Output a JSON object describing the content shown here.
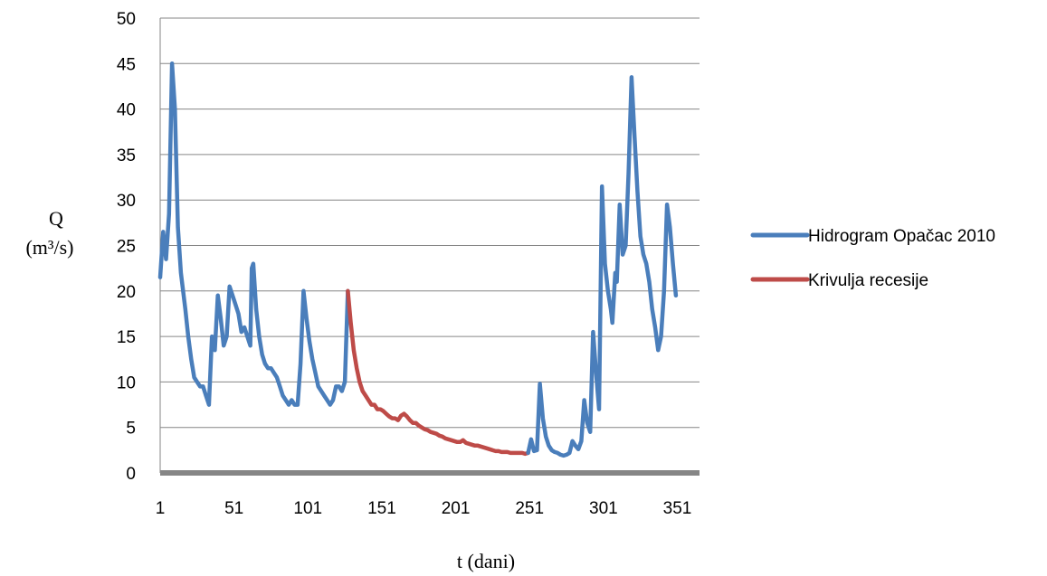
{
  "chart_data": {
    "type": "line",
    "title": "",
    "xlabel": "t (dani)",
    "ylabel": "Q",
    "ylabel_unit": "(m³/s)",
    "xlim": [
      1,
      366
    ],
    "ylim": [
      0,
      50
    ],
    "yticks": [
      0,
      5,
      10,
      15,
      20,
      25,
      30,
      35,
      40,
      45,
      50
    ],
    "xticks": [
      1,
      51,
      101,
      151,
      201,
      251,
      301,
      351
    ],
    "grid": "horizontal",
    "legend_position": "right",
    "series": [
      {
        "name": "Hidrogram Opačac 2010",
        "color": "#4a7ebb",
        "points": [
          [
            1,
            21.5
          ],
          [
            3,
            26.5
          ],
          [
            5,
            23.5
          ],
          [
            7,
            28.5
          ],
          [
            9,
            45
          ],
          [
            11,
            40
          ],
          [
            13,
            27
          ],
          [
            15,
            22
          ],
          [
            18,
            18
          ],
          [
            20,
            15
          ],
          [
            22,
            12.5
          ],
          [
            24,
            10.5
          ],
          [
            26,
            10
          ],
          [
            28,
            9.5
          ],
          [
            30,
            9.5
          ],
          [
            32,
            8.5
          ],
          [
            34,
            7.5
          ],
          [
            36,
            15
          ],
          [
            38,
            13.5
          ],
          [
            40,
            19.5
          ],
          [
            42,
            17
          ],
          [
            44,
            14
          ],
          [
            46,
            15
          ],
          [
            48,
            20.5
          ],
          [
            50,
            19.5
          ],
          [
            52,
            18.5
          ],
          [
            54,
            17.5
          ],
          [
            56,
            15.5
          ],
          [
            58,
            16
          ],
          [
            60,
            15
          ],
          [
            62,
            14
          ],
          [
            63,
            22.5
          ],
          [
            64,
            23
          ],
          [
            66,
            18
          ],
          [
            68,
            15
          ],
          [
            70,
            13
          ],
          [
            72,
            12
          ],
          [
            74,
            11.5
          ],
          [
            76,
            11.5
          ],
          [
            78,
            11
          ],
          [
            80,
            10.5
          ],
          [
            82,
            9.5
          ],
          [
            84,
            8.5
          ],
          [
            86,
            8
          ],
          [
            88,
            7.5
          ],
          [
            90,
            8
          ],
          [
            92,
            7.5
          ],
          [
            94,
            7.5
          ],
          [
            96,
            12
          ],
          [
            98,
            20
          ],
          [
            100,
            17
          ],
          [
            102,
            14.5
          ],
          [
            104,
            12.5
          ],
          [
            106,
            11
          ],
          [
            108,
            9.5
          ],
          [
            110,
            9
          ],
          [
            112,
            8.5
          ],
          [
            114,
            8
          ],
          [
            116,
            7.5
          ],
          [
            118,
            8
          ],
          [
            120,
            9.5
          ],
          [
            122,
            9.5
          ],
          [
            124,
            9
          ],
          [
            126,
            10
          ],
          [
            128,
            20
          ]
        ]
      },
      {
        "name": "Krivulja recesije",
        "color": "#be4b48",
        "points": [
          [
            128,
            20
          ],
          [
            130,
            16.5
          ],
          [
            132,
            13.5
          ],
          [
            134,
            11.5
          ],
          [
            136,
            10
          ],
          [
            138,
            9
          ],
          [
            140,
            8.5
          ],
          [
            142,
            8
          ],
          [
            144,
            7.5
          ],
          [
            146,
            7.5
          ],
          [
            148,
            7
          ],
          [
            150,
            7
          ],
          [
            152,
            6.8
          ],
          [
            154,
            6.5
          ],
          [
            156,
            6.2
          ],
          [
            158,
            6
          ],
          [
            160,
            6
          ],
          [
            162,
            5.8
          ],
          [
            164,
            6.3
          ],
          [
            166,
            6.5
          ],
          [
            168,
            6.2
          ],
          [
            170,
            5.8
          ],
          [
            172,
            5.5
          ],
          [
            174,
            5.5
          ],
          [
            176,
            5.2
          ],
          [
            178,
            5
          ],
          [
            180,
            4.8
          ],
          [
            182,
            4.7
          ],
          [
            184,
            4.5
          ],
          [
            186,
            4.4
          ],
          [
            188,
            4.3
          ],
          [
            190,
            4.1
          ],
          [
            192,
            4
          ],
          [
            194,
            3.8
          ],
          [
            196,
            3.7
          ],
          [
            198,
            3.6
          ],
          [
            200,
            3.5
          ],
          [
            202,
            3.4
          ],
          [
            204,
            3.4
          ],
          [
            206,
            3.6
          ],
          [
            208,
            3.3
          ],
          [
            210,
            3.2
          ],
          [
            212,
            3.1
          ],
          [
            214,
            3
          ],
          [
            216,
            3
          ],
          [
            218,
            2.9
          ],
          [
            220,
            2.8
          ],
          [
            222,
            2.7
          ],
          [
            224,
            2.6
          ],
          [
            226,
            2.5
          ],
          [
            228,
            2.4
          ],
          [
            230,
            2.4
          ],
          [
            232,
            2.3
          ],
          [
            234,
            2.3
          ],
          [
            236,
            2.3
          ],
          [
            238,
            2.2
          ],
          [
            240,
            2.2
          ],
          [
            242,
            2.2
          ],
          [
            244,
            2.2
          ],
          [
            246,
            2.2
          ],
          [
            248,
            2.1
          ],
          [
            250,
            2.2
          ]
        ]
      },
      {
        "name": "",
        "color": "#4a7ebb",
        "points": [
          [
            250,
            2.2
          ],
          [
            252,
            3.7
          ],
          [
            254,
            2.4
          ],
          [
            256,
            2.5
          ],
          [
            258,
            9.8
          ],
          [
            260,
            6
          ],
          [
            262,
            4
          ],
          [
            264,
            3
          ],
          [
            266,
            2.5
          ],
          [
            268,
            2.3
          ],
          [
            270,
            2.2
          ],
          [
            272,
            2
          ],
          [
            274,
            1.9
          ],
          [
            276,
            2
          ],
          [
            278,
            2.2
          ],
          [
            280,
            3.5
          ],
          [
            282,
            3
          ],
          [
            284,
            2.6
          ],
          [
            286,
            3.5
          ],
          [
            288,
            8
          ],
          [
            290,
            5.5
          ],
          [
            292,
            4.5
          ],
          [
            294,
            15.5
          ],
          [
            296,
            11
          ],
          [
            298,
            7
          ],
          [
            300,
            31.5
          ],
          [
            302,
            23
          ],
          [
            304,
            20
          ],
          [
            306,
            18
          ],
          [
            307,
            16.5
          ],
          [
            309,
            22
          ],
          [
            310,
            21
          ],
          [
            312,
            29.5
          ],
          [
            314,
            24
          ],
          [
            316,
            25
          ],
          [
            318,
            33
          ],
          [
            320,
            43.5
          ],
          [
            322,
            37
          ],
          [
            324,
            31
          ],
          [
            326,
            26
          ],
          [
            328,
            24
          ],
          [
            330,
            23
          ],
          [
            332,
            21
          ],
          [
            334,
            18
          ],
          [
            336,
            16
          ],
          [
            338,
            13.5
          ],
          [
            340,
            15
          ],
          [
            342,
            20
          ],
          [
            344,
            29.5
          ],
          [
            346,
            27
          ],
          [
            348,
            23
          ],
          [
            350,
            19.5
          ]
        ]
      }
    ]
  }
}
